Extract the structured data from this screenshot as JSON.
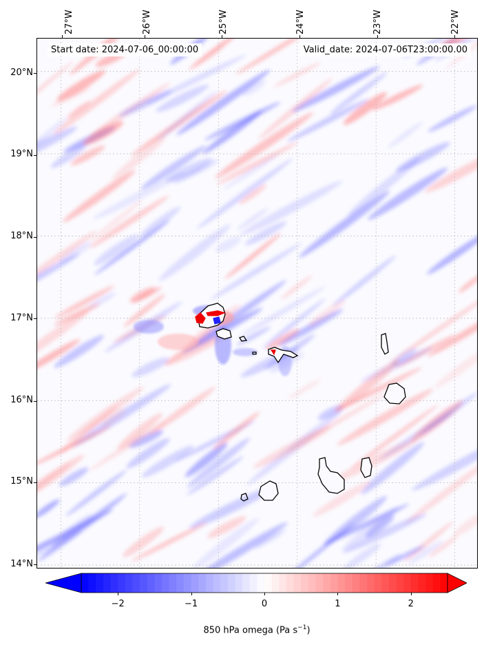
{
  "map": {
    "lon_labels": [
      "27°W",
      "26°W",
      "25°W",
      "24°W",
      "23°W",
      "22°W"
    ],
    "lat_labels": [
      "20°N",
      "19°N",
      "18°N",
      "17°N",
      "16°N",
      "15°N",
      "14°N"
    ],
    "lon_ticks": [
      -27,
      -26,
      -25,
      -24,
      -23,
      -22
    ],
    "lat_ticks": [
      20,
      19,
      18,
      17,
      16,
      15,
      14
    ],
    "lon_range": [
      -27.3,
      -21.7
    ],
    "lat_range": [
      13.95,
      20.4
    ],
    "gridlines": true,
    "start_date": "Start date: 2024-07-06_00:00:00",
    "valid_date": "Valid_date: 2024-07-06T23:00:00.00"
  },
  "colorbar": {
    "ticks": [
      -2,
      -1,
      0,
      1,
      2
    ],
    "tick_labels": [
      "−2",
      "−1",
      "0",
      "1",
      "2"
    ],
    "range": [
      -2.5,
      2.5
    ],
    "label_prefix": "850 hPa omega (Pa s",
    "label_exp": "−1",
    "label_suffix": ")",
    "low_color": "#0000ff",
    "mid_color": "#ffffff",
    "high_color": "#ff0000"
  },
  "coastline_color": "#000000"
}
